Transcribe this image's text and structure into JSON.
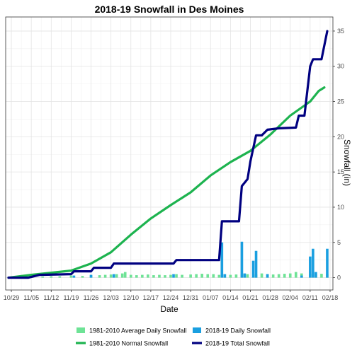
{
  "chart_data": {
    "type": "bar+line",
    "title": "2018-19 Snowfall in Des Moines",
    "xlabel": "Date",
    "ylabel": "Snowfall (in)",
    "x_range": [
      "2018-10-27",
      "2019-02-19"
    ],
    "ylim": [
      -1.75,
      37
    ],
    "y_axis_position": "right",
    "y_ticks": [
      0,
      5,
      10,
      15,
      20,
      25,
      30,
      35
    ],
    "x_ticks": [
      {
        "date": "2018-10-29",
        "label": "10/29"
      },
      {
        "date": "2018-11-05",
        "label": "11/05"
      },
      {
        "date": "2018-11-12",
        "label": "11/12"
      },
      {
        "date": "2018-11-19",
        "label": "11/19"
      },
      {
        "date": "2018-11-26",
        "label": "11/26"
      },
      {
        "date": "2018-12-03",
        "label": "12/03"
      },
      {
        "date": "2018-12-10",
        "label": "12/10"
      },
      {
        "date": "2018-12-17",
        "label": "12/17"
      },
      {
        "date": "2018-12-24",
        "label": "12/24"
      },
      {
        "date": "2018-12-31",
        "label": "12/31"
      },
      {
        "date": "2019-01-07",
        "label": "01/07"
      },
      {
        "date": "2019-01-14",
        "label": "01/14"
      },
      {
        "date": "2019-01-21",
        "label": "01/21"
      },
      {
        "date": "2019-01-28",
        "label": "01/28"
      },
      {
        "date": "2019-02-04",
        "label": "02/04"
      },
      {
        "date": "2019-02-11",
        "label": "02/11"
      },
      {
        "date": "2019-02-18",
        "label": "02/18"
      }
    ],
    "grid": true,
    "legend_position": "bottom",
    "series": [
      {
        "name": "1981-2010 Average Daily Snowfall",
        "type": "bar",
        "color": "#6ee396",
        "points": [
          [
            "2018-11-02",
            0.1
          ],
          [
            "2018-11-05",
            0.15
          ],
          [
            "2018-11-09",
            0.15
          ],
          [
            "2018-11-12",
            0.2
          ],
          [
            "2018-11-15",
            0.2
          ],
          [
            "2018-11-19",
            0.3
          ],
          [
            "2018-11-23",
            0.25
          ],
          [
            "2018-11-26",
            0.3
          ],
          [
            "2018-11-29",
            0.35
          ],
          [
            "2018-12-01",
            0.4
          ],
          [
            "2018-12-03",
            0.45
          ],
          [
            "2018-12-05",
            0.5
          ],
          [
            "2018-12-07",
            0.6
          ],
          [
            "2018-12-08",
            0.8
          ],
          [
            "2018-12-10",
            0.4
          ],
          [
            "2018-12-12",
            0.35
          ],
          [
            "2018-12-14",
            0.4
          ],
          [
            "2018-12-16",
            0.45
          ],
          [
            "2018-12-18",
            0.35
          ],
          [
            "2018-12-20",
            0.4
          ],
          [
            "2018-12-22",
            0.35
          ],
          [
            "2018-12-24",
            0.4
          ],
          [
            "2018-12-26",
            0.5
          ],
          [
            "2018-12-28",
            0.4
          ],
          [
            "2018-12-31",
            0.45
          ],
          [
            "2019-01-02",
            0.5
          ],
          [
            "2019-01-04",
            0.55
          ],
          [
            "2019-01-06",
            0.5
          ],
          [
            "2019-01-08",
            0.5
          ],
          [
            "2019-01-10",
            0.4
          ],
          [
            "2019-01-12",
            0.45
          ],
          [
            "2019-01-14",
            0.4
          ],
          [
            "2019-01-16",
            0.45
          ],
          [
            "2019-01-18",
            0.5
          ],
          [
            "2019-01-20",
            0.5
          ],
          [
            "2019-01-23",
            0.45
          ],
          [
            "2019-01-25",
            0.6
          ],
          [
            "2019-01-27",
            0.5
          ],
          [
            "2019-01-29",
            0.45
          ],
          [
            "2019-01-31",
            0.5
          ],
          [
            "2019-02-02",
            0.55
          ],
          [
            "2019-02-04",
            0.6
          ],
          [
            "2019-02-06",
            0.8
          ],
          [
            "2019-02-08",
            0.6
          ],
          [
            "2019-02-11",
            0.55
          ],
          [
            "2019-02-13",
            0.6
          ],
          [
            "2019-02-15",
            0.55
          ],
          [
            "2019-02-17",
            0.5
          ]
        ]
      },
      {
        "name": "1981-2010 Normal Snowfall",
        "type": "line",
        "color": "#1db34f",
        "points": [
          [
            "2018-10-28",
            0
          ],
          [
            "2018-11-01",
            0.2
          ],
          [
            "2018-11-05",
            0.4
          ],
          [
            "2018-11-12",
            0.7
          ],
          [
            "2018-11-19",
            1.0
          ],
          [
            "2018-11-26",
            2.0
          ],
          [
            "2018-12-03",
            3.6
          ],
          [
            "2018-12-10",
            6.1
          ],
          [
            "2018-12-17",
            8.4
          ],
          [
            "2018-12-24",
            10.3
          ],
          [
            "2018-12-31",
            12.1
          ],
          [
            "2019-01-07",
            14.5
          ],
          [
            "2019-01-14",
            16.4
          ],
          [
            "2019-01-21",
            18.0
          ],
          [
            "2019-01-28",
            20.3
          ],
          [
            "2019-02-04",
            23.0
          ],
          [
            "2019-02-11",
            25.0
          ],
          [
            "2019-02-14",
            26.5
          ],
          [
            "2019-02-16",
            27.0
          ]
        ]
      },
      {
        "name": "2018-19 Daily Snowfall",
        "type": "bar",
        "color": "#1a9fe0",
        "points": [
          [
            "2018-11-20",
            0.3
          ],
          [
            "2018-11-26",
            0.4
          ],
          [
            "2018-12-04",
            0.5
          ],
          [
            "2018-12-25",
            0.5
          ],
          [
            "2019-01-11",
            5.0
          ],
          [
            "2019-01-12",
            0.5
          ],
          [
            "2019-01-18",
            5.1
          ],
          [
            "2019-01-19",
            0.6
          ],
          [
            "2019-01-22",
            2.4
          ],
          [
            "2019-01-23",
            3.8
          ],
          [
            "2019-01-27",
            0.5
          ],
          [
            "2019-02-08",
            0.3
          ],
          [
            "2019-02-11",
            3.0
          ],
          [
            "2019-02-12",
            4.1
          ],
          [
            "2019-02-13",
            0.8
          ],
          [
            "2019-02-17",
            4.1
          ]
        ]
      },
      {
        "name": "2018-19 Total Snowfall",
        "type": "line",
        "color": "#000080",
        "points": [
          [
            "2018-10-28",
            0
          ],
          [
            "2018-11-04",
            0
          ],
          [
            "2018-11-08",
            0.4
          ],
          [
            "2018-11-19",
            0.5
          ],
          [
            "2018-11-20",
            0.9
          ],
          [
            "2018-11-26",
            0.9
          ],
          [
            "2018-11-27",
            1.4
          ],
          [
            "2018-12-03",
            1.4
          ],
          [
            "2018-12-04",
            2.0
          ],
          [
            "2018-12-25",
            2.0
          ],
          [
            "2018-12-26",
            2.5
          ],
          [
            "2019-01-10",
            2.5
          ],
          [
            "2019-01-11",
            8.0
          ],
          [
            "2019-01-15",
            8.0
          ],
          [
            "2019-01-17",
            8.0
          ],
          [
            "2019-01-18",
            13.0
          ],
          [
            "2019-01-19",
            13.5
          ],
          [
            "2019-01-20",
            14.0
          ],
          [
            "2019-01-21",
            16.5
          ],
          [
            "2019-01-23",
            20.2
          ],
          [
            "2019-01-25",
            20.2
          ],
          [
            "2019-01-27",
            21.0
          ],
          [
            "2019-01-31",
            21.2
          ],
          [
            "2019-02-06",
            21.3
          ],
          [
            "2019-02-07",
            23.0
          ],
          [
            "2019-02-09",
            23.0
          ],
          [
            "2019-02-11",
            30.0
          ],
          [
            "2019-02-12",
            31.0
          ],
          [
            "2019-02-15",
            31.0
          ],
          [
            "2019-02-17",
            35.0
          ]
        ]
      }
    ]
  }
}
